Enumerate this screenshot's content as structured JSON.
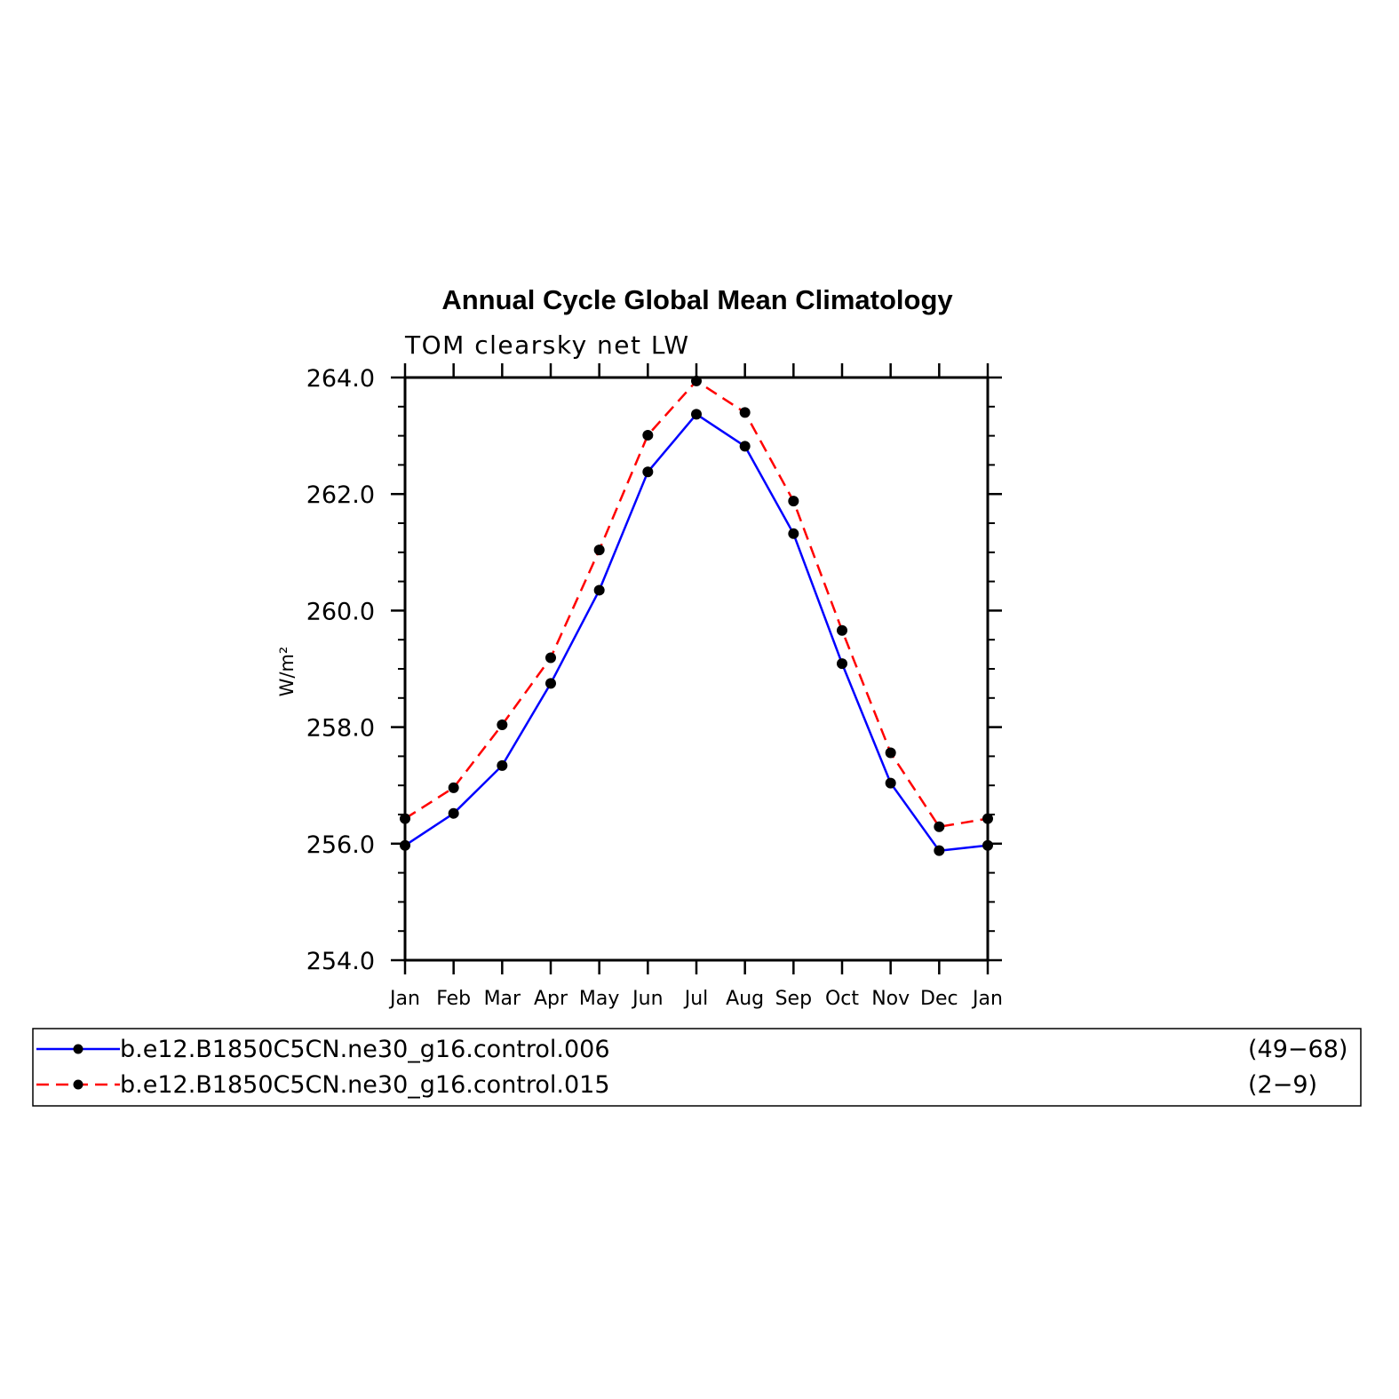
{
  "chart_data": {
    "type": "line",
    "title": "Annual Cycle Global Mean Climatology",
    "subtitle": "TOM clearsky net LW",
    "xlabel": "",
    "ylabel": "W/m²",
    "categories": [
      "Jan",
      "Feb",
      "Mar",
      "Apr",
      "May",
      "Jun",
      "Jul",
      "Aug",
      "Sep",
      "Oct",
      "Nov",
      "Dec",
      "Jan"
    ],
    "ylim": [
      254.0,
      264.0
    ],
    "yticks": [
      "254.0",
      "256.0",
      "258.0",
      "260.0",
      "262.0",
      "264.0"
    ],
    "grid": false,
    "legend_placement": "bottom",
    "series": [
      {
        "name": "b.e12.B1850C5CN.ne30_g16.control.006",
        "years": "(49−68)",
        "color": "#0000ff",
        "dash": "solid",
        "values": [
          255.97,
          256.52,
          257.34,
          258.75,
          260.35,
          262.38,
          263.37,
          262.82,
          261.32,
          259.09,
          257.04,
          255.88,
          255.97
        ]
      },
      {
        "name": "b.e12.B1850C5CN.ne30_g16.control.015",
        "years": "(2−9)",
        "color": "#ff0000",
        "dash": "dashed",
        "values": [
          256.43,
          256.96,
          258.04,
          259.19,
          261.04,
          263.01,
          263.94,
          263.4,
          261.88,
          259.66,
          257.56,
          256.29,
          256.43
        ]
      }
    ]
  }
}
